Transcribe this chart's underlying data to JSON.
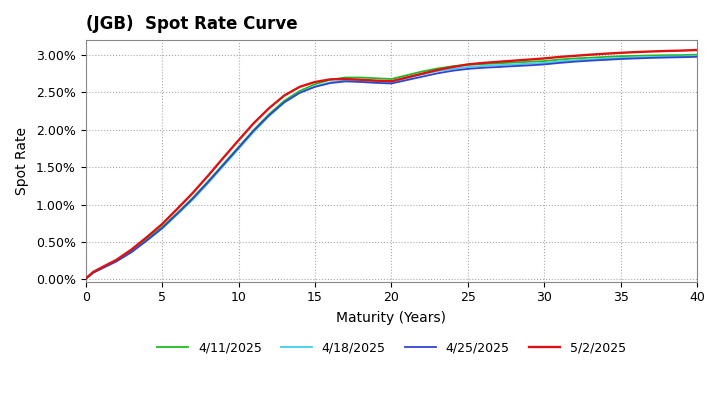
{
  "title": "(JGB)  Spot Rate Curve",
  "xlabel": "Maturity (Years)",
  "ylabel": "Spot Rate",
  "xlim": [
    0,
    40
  ],
  "ylim": [
    -0.0003,
    0.032
  ],
  "yticks": [
    0.0,
    0.005,
    0.01,
    0.015,
    0.02,
    0.025,
    0.03
  ],
  "xticks": [
    0,
    5,
    10,
    15,
    20,
    25,
    30,
    35,
    40
  ],
  "series": [
    {
      "label": "4/11/2025",
      "color": "#22bb22",
      "linewidth": 1.3,
      "x": [
        0,
        0.5,
        1,
        2,
        3,
        4,
        5,
        6,
        7,
        8,
        9,
        10,
        11,
        12,
        13,
        14,
        15,
        16,
        17,
        18,
        19,
        20,
        21,
        22,
        23,
        24,
        25,
        26,
        27,
        28,
        29,
        30,
        31,
        32,
        33,
        34,
        35,
        36,
        37,
        38,
        39,
        40
      ],
      "y": [
        0.0001,
        0.001,
        0.0015,
        0.0025,
        0.0038,
        0.0054,
        0.007,
        0.0089,
        0.0109,
        0.0131,
        0.0154,
        0.0177,
        0.02,
        0.0221,
        0.0239,
        0.0252,
        0.0261,
        0.0267,
        0.027,
        0.027,
        0.0269,
        0.0268,
        0.0273,
        0.0278,
        0.0282,
        0.0285,
        0.0287,
        0.0288,
        0.0289,
        0.029,
        0.0291,
        0.0292,
        0.0294,
        0.02955,
        0.02965,
        0.02975,
        0.02985,
        0.0299,
        0.02995,
        0.02998,
        0.03,
        0.03005
      ]
    },
    {
      "label": "4/18/2025",
      "color": "#44ccee",
      "linewidth": 1.3,
      "x": [
        0,
        0.5,
        1,
        2,
        3,
        4,
        5,
        6,
        7,
        8,
        9,
        10,
        11,
        12,
        13,
        14,
        15,
        16,
        17,
        18,
        19,
        20,
        21,
        22,
        23,
        24,
        25,
        26,
        27,
        28,
        29,
        30,
        31,
        32,
        33,
        34,
        35,
        36,
        37,
        38,
        39,
        40
      ],
      "y": [
        0.0001,
        0.0009,
        0.0014,
        0.0024,
        0.00365,
        0.0052,
        0.0068,
        0.0087,
        0.01065,
        0.01285,
        0.01515,
        0.01745,
        0.01975,
        0.02185,
        0.02365,
        0.02495,
        0.0258,
        0.02635,
        0.0266,
        0.02655,
        0.02645,
        0.0264,
        0.0269,
        0.0274,
        0.02785,
        0.02815,
        0.0284,
        0.02855,
        0.02865,
        0.02875,
        0.02885,
        0.02895,
        0.02915,
        0.0293,
        0.02942,
        0.02952,
        0.02962,
        0.02968,
        0.02974,
        0.02978,
        0.02981,
        0.02986
      ]
    },
    {
      "label": "4/25/2025",
      "color": "#3344cc",
      "linewidth": 1.3,
      "x": [
        0,
        0.5,
        1,
        2,
        3,
        4,
        5,
        6,
        7,
        8,
        9,
        10,
        11,
        12,
        13,
        14,
        15,
        16,
        17,
        18,
        19,
        20,
        21,
        22,
        23,
        24,
        25,
        26,
        27,
        28,
        29,
        30,
        31,
        32,
        33,
        34,
        35,
        36,
        37,
        38,
        39,
        40
      ],
      "y": [
        0.0001,
        0.0009,
        0.0014,
        0.0024,
        0.00365,
        0.0052,
        0.00685,
        0.0088,
        0.0108,
        0.013,
        0.0153,
        0.0176,
        0.0199,
        0.02195,
        0.0237,
        0.02495,
        0.02575,
        0.02625,
        0.02648,
        0.0264,
        0.02628,
        0.0262,
        0.02665,
        0.0271,
        0.02755,
        0.0279,
        0.02815,
        0.0283,
        0.0284,
        0.02852,
        0.02862,
        0.02875,
        0.02895,
        0.02912,
        0.02925,
        0.02936,
        0.02947,
        0.02955,
        0.02962,
        0.02967,
        0.02971,
        0.02977
      ]
    },
    {
      "label": "5/2/2025",
      "color": "#dd1111",
      "linewidth": 1.7,
      "x": [
        0,
        0.5,
        1,
        2,
        3,
        4,
        5,
        6,
        7,
        8,
        9,
        10,
        11,
        12,
        13,
        14,
        15,
        16,
        17,
        18,
        19,
        20,
        21,
        22,
        23,
        24,
        25,
        26,
        27,
        28,
        29,
        30,
        31,
        32,
        33,
        34,
        35,
        36,
        37,
        38,
        39,
        40
      ],
      "y": [
        0.0001,
        0.001,
        0.00155,
        0.0026,
        0.004,
        0.00565,
        0.0074,
        0.00945,
        0.01155,
        0.01385,
        0.01625,
        0.0186,
        0.0209,
        0.0229,
        0.0246,
        0.02575,
        0.0264,
        0.02675,
        0.0268,
        0.0267,
        0.02658,
        0.0265,
        0.027,
        0.0275,
        0.028,
        0.0284,
        0.02875,
        0.02895,
        0.0291,
        0.02925,
        0.0294,
        0.02955,
        0.02975,
        0.0299,
        0.03005,
        0.03018,
        0.0303,
        0.0304,
        0.03048,
        0.03055,
        0.0306,
        0.03068
      ]
    }
  ],
  "background_color": "#ffffff",
  "plot_bg_color": "#ffffff",
  "grid_color": "#aaaaaa",
  "title_fontsize": 12,
  "label_fontsize": 10,
  "tick_fontsize": 9,
  "legend_fontsize": 9
}
